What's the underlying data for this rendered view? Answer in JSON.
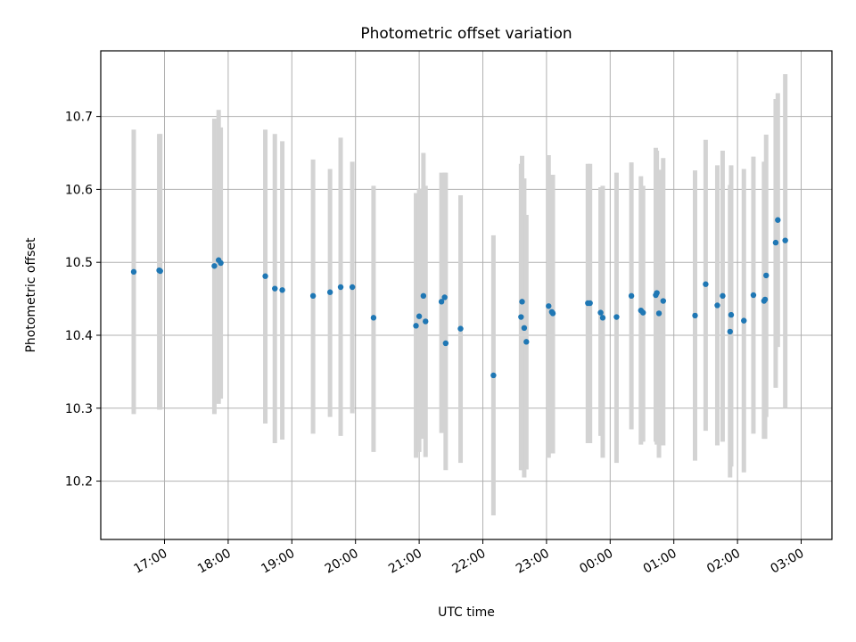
{
  "chart_data": {
    "type": "scatter",
    "title": "Photometric offset variation",
    "xlabel": "UTC time",
    "ylabel": "Photometric offset",
    "grid": true,
    "x_tick_labels": [
      "17:00",
      "18:00",
      "19:00",
      "20:00",
      "21:00",
      "22:00",
      "23:00",
      "00:00",
      "01:00",
      "02:00",
      "03:00"
    ],
    "y_tick_labels": [
      "10.2",
      "10.3",
      "10.4",
      "10.5",
      "10.6",
      "10.7"
    ],
    "y_ticks": [
      10.2,
      10.3,
      10.4,
      10.5,
      10.6,
      10.7
    ],
    "ylim": [
      10.12,
      10.79
    ],
    "colors": {
      "point": "#1f77b4",
      "errorbar": "#d3d3d3",
      "grid": "#b0b0b0"
    },
    "series": [
      {
        "x": [
          "16:31",
          "16:55",
          "16:56",
          "17:47",
          "17:51",
          "17:53",
          "18:35",
          "18:44",
          "18:51",
          "19:20",
          "19:36",
          "19:46",
          "19:57",
          "20:17",
          "20:57",
          "21:00",
          "21:04",
          "21:06",
          "21:21",
          "21:24",
          "21:25",
          "21:39",
          "22:10",
          "22:36",
          "22:37",
          "22:39",
          "22:41",
          "23:02",
          "23:05",
          "23:06",
          "23:39",
          "23:41",
          "23:51",
          "23:53",
          "00:06",
          "00:20",
          "00:29",
          "00:31",
          "00:43",
          "00:44",
          "00:46",
          "00:50",
          "01:20",
          "01:30",
          "01:41",
          "01:46",
          "01:53",
          "01:54",
          "02:06",
          "02:15",
          "02:25",
          "02:26",
          "02:27",
          "02:36",
          "02:38",
          "02:45"
        ],
        "y": [
          10.487,
          10.489,
          10.488,
          10.495,
          10.503,
          10.499,
          10.481,
          10.464,
          10.462,
          10.454,
          10.459,
          10.466,
          10.466,
          10.424,
          10.413,
          10.426,
          10.454,
          10.419,
          10.446,
          10.452,
          10.389,
          10.409,
          10.345,
          10.425,
          10.446,
          10.41,
          10.391,
          10.44,
          10.432,
          10.43,
          10.444,
          10.444,
          10.431,
          10.424,
          10.425,
          10.454,
          10.434,
          10.431,
          10.455,
          10.458,
          10.43,
          10.447,
          10.427,
          10.47,
          10.441,
          10.454,
          10.405,
          10.428,
          10.42,
          10.455,
          10.447,
          10.449,
          10.482,
          10.527,
          10.558,
          10.53
        ],
        "yerr_low": [
          10.292,
          10.298,
          10.298,
          10.292,
          10.306,
          10.313,
          10.279,
          10.252,
          10.257,
          10.265,
          10.288,
          10.262,
          10.293,
          10.24,
          10.232,
          10.24,
          10.258,
          10.233,
          10.266,
          10.268,
          10.215,
          10.225,
          10.153,
          10.215,
          10.215,
          10.205,
          10.216,
          10.232,
          10.238,
          10.238,
          10.252,
          10.252,
          10.262,
          10.232,
          10.225,
          10.271,
          10.25,
          10.254,
          10.254,
          10.25,
          10.232,
          10.249,
          10.228,
          10.269,
          10.249,
          10.254,
          10.205,
          10.22,
          10.212,
          10.265,
          10.258,
          10.258,
          10.288,
          10.328,
          10.384,
          10.3
        ],
        "yerr_high": [
          10.682,
          10.676,
          10.676,
          10.697,
          10.709,
          10.685,
          10.682,
          10.676,
          10.666,
          10.641,
          10.628,
          10.671,
          10.638,
          10.605,
          10.595,
          10.601,
          10.65,
          10.605,
          10.623,
          10.623,
          10.623,
          10.592,
          10.537,
          10.635,
          10.646,
          10.615,
          10.565,
          10.647,
          10.62,
          10.62,
          10.635,
          10.635,
          10.603,
          10.605,
          10.623,
          10.637,
          10.618,
          10.605,
          10.657,
          10.653,
          10.627,
          10.643,
          10.626,
          10.668,
          10.633,
          10.653,
          10.606,
          10.633,
          10.628,
          10.645,
          10.638,
          10.638,
          10.675,
          10.724,
          10.732,
          10.758
        ]
      }
    ]
  }
}
